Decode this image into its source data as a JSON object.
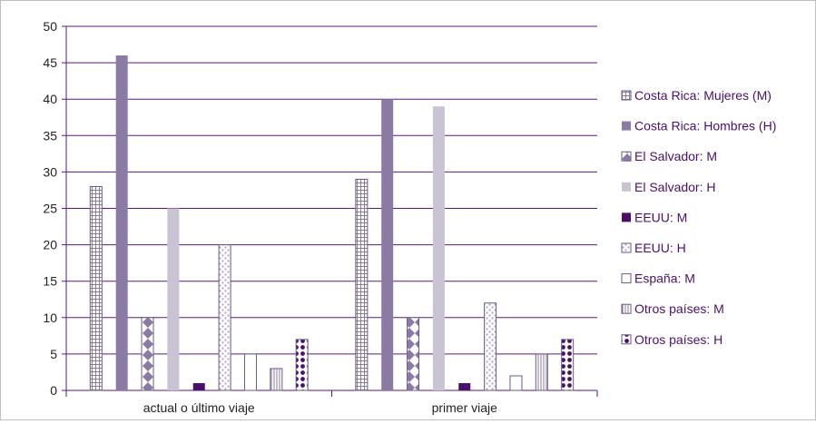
{
  "chart_data": {
    "type": "bar",
    "categories": [
      "actual o último viaje",
      "primer viaje"
    ],
    "ylim": [
      0,
      50
    ],
    "yticks": [
      0,
      5,
      10,
      15,
      20,
      25,
      30,
      35,
      40,
      45,
      50
    ],
    "grid": true,
    "legend_position": "right",
    "series": [
      {
        "name": "Costa Rica: Mujeres (M)",
        "values": [
          28,
          29
        ],
        "color": "#ffffff",
        "pattern": "grid"
      },
      {
        "name": "Costa Rica: Hombres (H)",
        "values": [
          46,
          40
        ],
        "color": "#8b7aa3",
        "pattern": "solid"
      },
      {
        "name": "El Salvador: M",
        "values": [
          10,
          10
        ],
        "color": "#ffffff",
        "pattern": "diamond"
      },
      {
        "name": "El Salvador: H",
        "values": [
          25,
          39
        ],
        "color": "#c9c3d3",
        "pattern": "solid"
      },
      {
        "name": "EEUU: M",
        "values": [
          1,
          1
        ],
        "color": "#4b0f6b",
        "pattern": "solid"
      },
      {
        "name": "EEUU: H",
        "values": [
          20,
          12
        ],
        "color": "#ffffff",
        "pattern": "dots"
      },
      {
        "name": "España: M",
        "values": [
          5,
          2
        ],
        "color": "#ffffff",
        "pattern": "outline"
      },
      {
        "name": "Otros países: M",
        "values": [
          3,
          5
        ],
        "color": "#ffffff",
        "pattern": "vlines"
      },
      {
        "name": "Otros países: H",
        "values": [
          7,
          7
        ],
        "color": "#ffffff",
        "pattern": "bigdots"
      }
    ]
  }
}
